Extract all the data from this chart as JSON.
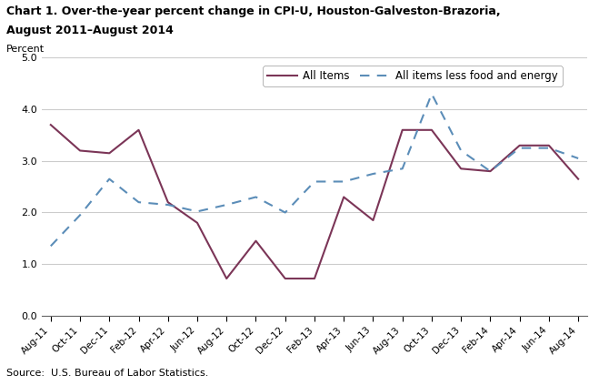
{
  "title_line1": "Chart 1. Over-the-year percent change in CPI-U, Houston-Galveston-Brazoria,",
  "title_line2": "August 2011–August 2014",
  "ylabel": "Percent",
  "source": "Source:  U.S. Bureau of Labor Statistics.",
  "x_labels": [
    "Aug-11",
    "Oct-11",
    "Dec-11",
    "Feb-12",
    "Apr-12",
    "Jun-12",
    "Aug-12",
    "Oct-12",
    "Dec-12",
    "Feb-13",
    "Apr-13",
    "Jun-13",
    "Aug-13",
    "Oct-13",
    "Dec-13",
    "Feb-14",
    "Apr-14",
    "Jun-14",
    "Aug-14"
  ],
  "all_items": [
    3.7,
    3.2,
    3.15,
    3.6,
    2.2,
    1.8,
    0.72,
    1.45,
    0.72,
    0.72,
    2.3,
    1.85,
    3.6,
    3.6,
    2.85,
    2.8,
    3.3,
    3.3,
    2.65
  ],
  "less_food_energy": [
    1.35,
    1.95,
    2.65,
    2.2,
    2.15,
    2.02,
    2.15,
    2.3,
    2.0,
    2.6,
    2.6,
    2.75,
    2.85,
    4.3,
    3.2,
    2.8,
    3.25,
    3.25,
    3.05
  ],
  "all_items_color": "#7B3557",
  "less_food_energy_color": "#5B8DB8",
  "ylim": [
    0.0,
    5.0
  ],
  "yticks": [
    0.0,
    1.0,
    2.0,
    3.0,
    4.0,
    5.0
  ],
  "legend_all_items": "All Items",
  "legend_less": "All items less food and energy",
  "figsize": [
    6.59,
    4.23
  ],
  "dpi": 100
}
